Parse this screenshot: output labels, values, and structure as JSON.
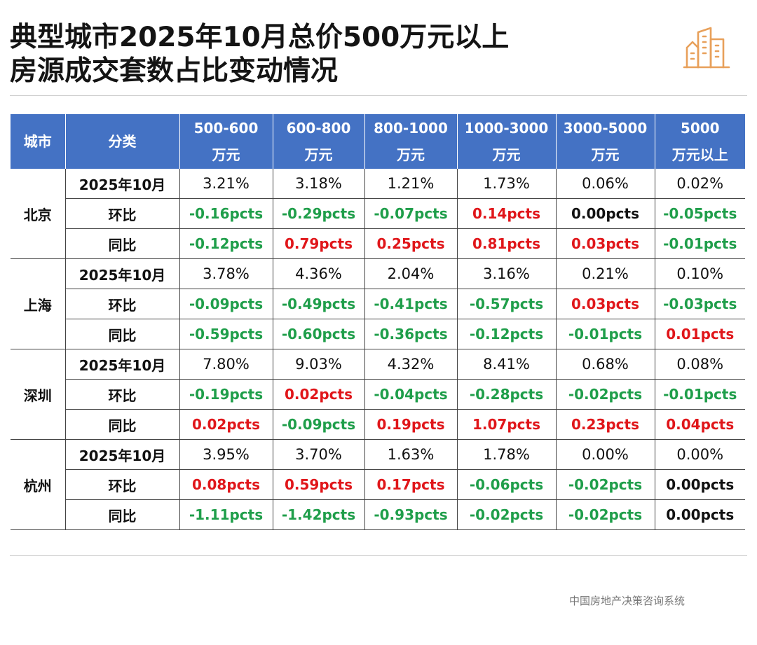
{
  "title": {
    "line1": "典型城市2025年10月总价500万元以上",
    "line2": "房源成交套数占比变动情况"
  },
  "icon": "city-buildings-icon",
  "colors": {
    "header_bg": "#4472c4",
    "positive": "#e0161a",
    "negative": "#1f9e4a",
    "accent": "#e8a05a"
  },
  "table": {
    "headers": {
      "city": "城市",
      "category": "分类",
      "columns": [
        {
          "l1": "500-600",
          "l2": "万元"
        },
        {
          "l1": "600-800",
          "l2": "万元"
        },
        {
          "l1": "800-1000",
          "l2": "万元"
        },
        {
          "l1": "1000-3000",
          "l2": "万元"
        },
        {
          "l1": "3000-5000",
          "l2": "万元"
        },
        {
          "l1": "5000",
          "l2": "万元以上"
        }
      ]
    },
    "cities": [
      {
        "name": "北京",
        "rows": [
          {
            "label": "2025年10月",
            "values": [
              "3.21%",
              "3.18%",
              "1.21%",
              "1.73%",
              "0.06%",
              "0.02%"
            ]
          },
          {
            "label": "环比",
            "values": [
              "-0.16pcts",
              "-0.29pcts",
              "-0.07pcts",
              "0.14pcts",
              "0.00pcts",
              "-0.05pcts"
            ]
          },
          {
            "label": "同比",
            "values": [
              "-0.12pcts",
              "0.79pcts",
              "0.25pcts",
              "0.81pcts",
              "0.03pcts",
              "-0.01pcts"
            ]
          }
        ]
      },
      {
        "name": "上海",
        "rows": [
          {
            "label": "2025年10月",
            "values": [
              "3.78%",
              "4.36%",
              "2.04%",
              "3.16%",
              "0.21%",
              "0.10%"
            ]
          },
          {
            "label": "环比",
            "values": [
              "-0.09pcts",
              "-0.49pcts",
              "-0.41pcts",
              "-0.57pcts",
              "0.03pcts",
              "-0.03pcts"
            ]
          },
          {
            "label": "同比",
            "values": [
              "-0.59pcts",
              "-0.60pcts",
              "-0.36pcts",
              "-0.12pcts",
              "-0.01pcts",
              "0.01pcts"
            ]
          }
        ]
      },
      {
        "name": "深圳",
        "rows": [
          {
            "label": "2025年10月",
            "values": [
              "7.80%",
              "9.03%",
              "4.32%",
              "8.41%",
              "0.68%",
              "0.08%"
            ]
          },
          {
            "label": "环比",
            "values": [
              "-0.19pcts",
              "0.02pcts",
              "-0.04pcts",
              "-0.28pcts",
              "-0.02pcts",
              "-0.01pcts"
            ]
          },
          {
            "label": "同比",
            "values": [
              "0.02pcts",
              "-0.09pcts",
              "0.19pcts",
              "1.07pcts",
              "0.23pcts",
              "0.04pcts"
            ]
          }
        ]
      },
      {
        "name": "杭州",
        "rows": [
          {
            "label": "2025年10月",
            "values": [
              "3.95%",
              "3.70%",
              "1.63%",
              "1.78%",
              "0.00%",
              "0.00%"
            ]
          },
          {
            "label": "环比",
            "values": [
              "0.08pcts",
              "0.59pcts",
              "0.17pcts",
              "-0.06pcts",
              "-0.02pcts",
              "0.00pcts"
            ]
          },
          {
            "label": "同比",
            "values": [
              "-1.11pcts",
              "-1.42pcts",
              "-0.93pcts",
              "-0.02pcts",
              "-0.02pcts",
              "0.00pcts"
            ]
          }
        ]
      }
    ]
  },
  "source": "中国房地产决策咨询系统"
}
